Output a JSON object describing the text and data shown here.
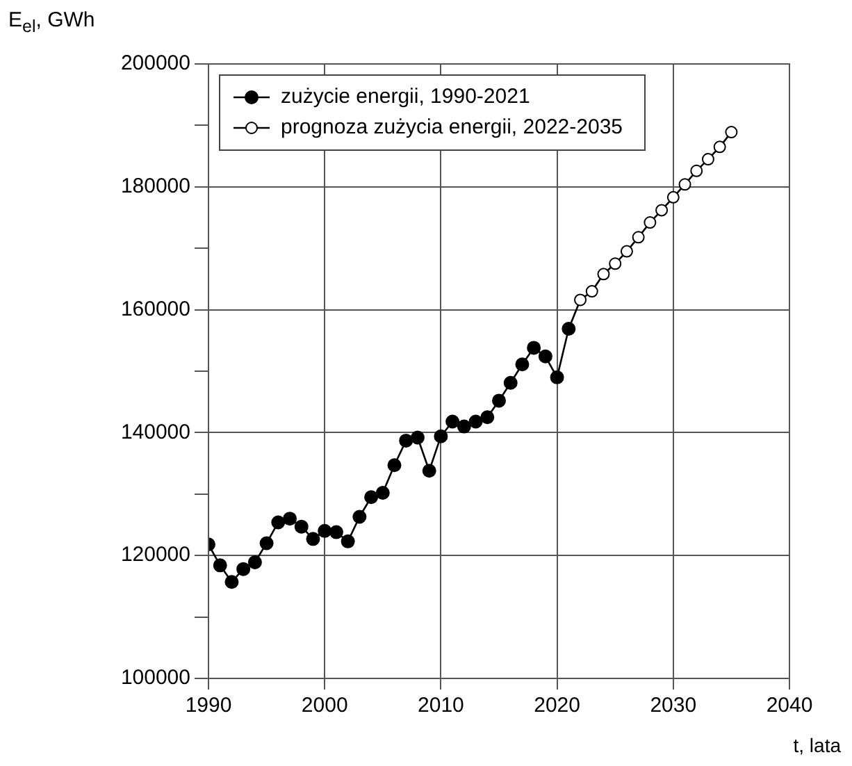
{
  "chart_data": {
    "type": "line",
    "ylabel": "E$_{el}$, GWh",
    "xlabel": "t, lata",
    "xlim": [
      1990,
      2040
    ],
    "xticks": [
      1990,
      2000,
      2010,
      2020,
      2030,
      2040
    ],
    "ylim": [
      100000,
      200000
    ],
    "yticks": [
      100000,
      {
        "value": 110000,
        "label": null
      },
      120000,
      {
        "value": 130000,
        "label": null
      },
      140000,
      {
        "value": 150000,
        "label": null
      },
      160000,
      {
        "value": 170000,
        "label": null
      },
      180000,
      {
        "value": 190000,
        "label": null
      },
      200000
    ],
    "grid": true,
    "legend": "top left",
    "marker": "circle",
    "line_style": "solid",
    "series": [
      {
        "name": "zużycie energii, 1990-2021",
        "color": "#000000",
        "x": [
          1990,
          1991,
          1992,
          1993,
          1994,
          1995,
          1996,
          1997,
          1998,
          1999,
          2000,
          2001,
          2002,
          2003,
          2004,
          2005,
          2006,
          2007,
          2008,
          2009,
          2010,
          2011,
          2012,
          2013,
          2014,
          2015,
          2016,
          2017,
          2018,
          2019,
          2020,
          2021
        ],
        "values": [
          121800,
          118400,
          115700,
          117800,
          118900,
          122000,
          125400,
          126000,
          124700,
          122700,
          124000,
          123800,
          122300,
          126300,
          129500,
          130200,
          134700,
          138700,
          139200,
          133800,
          139400,
          141800,
          141000,
          141800,
          142500,
          145200,
          148100,
          151100,
          153800,
          152400,
          149000,
          156900
        ]
      },
      {
        "name": "prognoza zużycia energii, 2022-2035",
        "color": "#000000",
        "x": [
          2021,
          2022,
          2023,
          2024,
          2025,
          2026,
          2027,
          2028,
          2029,
          2030,
          2031,
          2032,
          2033,
          2034,
          2035
        ],
        "values": [
          156900,
          161600,
          163000,
          165800,
          167500,
          169500,
          171800,
          174200,
          176200,
          178300,
          180400,
          182600,
          184500,
          186500,
          188900
        ]
      }
    ]
  }
}
